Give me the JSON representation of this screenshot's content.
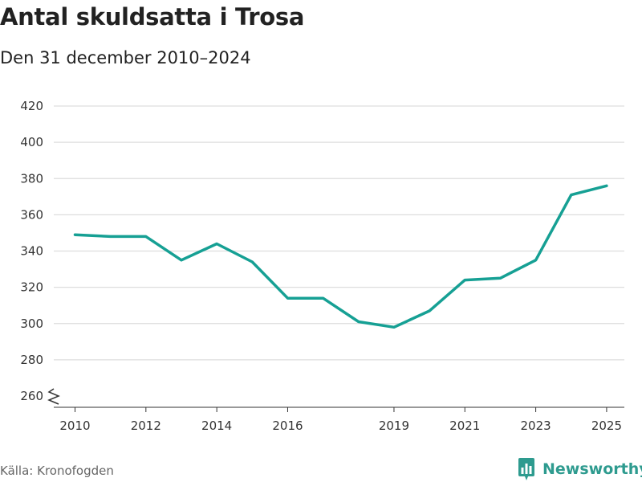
{
  "header": {
    "title": "Antal skuldsatta i Trosa",
    "subtitle": "Den 31 december 2010–2024"
  },
  "footer": {
    "source": "Källa: Kronofogden",
    "brand": "Newsworthy"
  },
  "colors": {
    "line": "#16a094",
    "grid": "#dddddd",
    "brand": "#2e9b8f"
  },
  "chart_data": {
    "type": "line",
    "x": [
      2010,
      2011,
      2012,
      2013,
      2014,
      2015,
      2016,
      2017,
      2018,
      2019,
      2020,
      2021,
      2022,
      2023,
      2024,
      2025
    ],
    "series": [
      {
        "values": [
          349,
          348,
          348,
          335,
          344,
          334,
          314,
          314,
          301,
          298,
          307,
          324,
          325,
          335,
          371,
          376
        ]
      }
    ],
    "x_ticks": [
      "2010",
      "2012",
      "2014",
      "2016",
      "2019",
      "2021",
      "2023",
      "2025"
    ],
    "y_ticks": [
      "260",
      "280",
      "300",
      "320",
      "340",
      "360",
      "380",
      "400",
      "420"
    ],
    "xlim": [
      2009.4,
      2025.5
    ],
    "ylim": [
      260,
      420
    ],
    "axis_break": true,
    "grid": true,
    "legend": "none"
  }
}
